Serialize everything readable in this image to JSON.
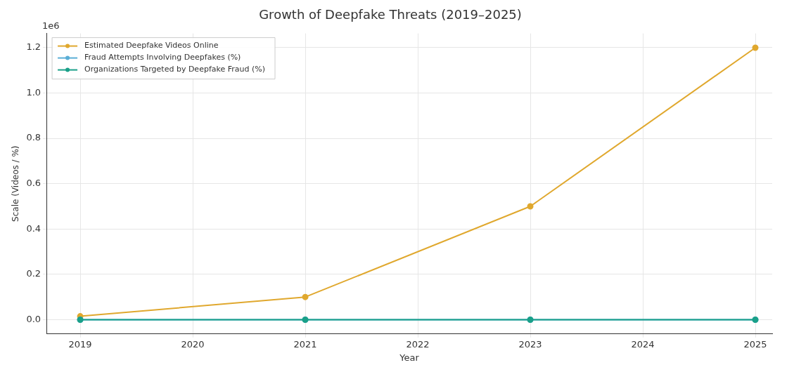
{
  "chart_data": {
    "type": "line",
    "title": "Growth of Deepfake Threats (2019–2025)",
    "xlabel": "Year",
    "ylabel": "Scale (Videos / %)",
    "x": [
      2019,
      2021,
      2023,
      2025
    ],
    "series": [
      {
        "name": "Estimated Deepfake Videos Online",
        "color": "#e0a82e",
        "values": [
          0.015,
          0.1,
          0.5,
          1.2
        ]
      },
      {
        "name": "Fraud Attempts Involving Deepfakes (%)",
        "color": "#5aaed6",
        "values": [
          0,
          0,
          0,
          0
        ]
      },
      {
        "name": "Organizations Targeted by Deepfake Fraud (%)",
        "color": "#1aa089",
        "values": [
          0,
          0,
          0,
          0
        ]
      }
    ],
    "xlim": [
      2018.7,
      2025.15
    ],
    "xticks": [
      2019,
      2020,
      2021,
      2022,
      2023,
      2024,
      2025
    ],
    "ylim": [
      -0.063,
      1.263
    ],
    "yticks": [
      {
        "value": 0,
        "label": "0.0"
      },
      0.2,
      0.4,
      0.6,
      0.8,
      {
        "value": 1,
        "label": "1.0"
      },
      1.2
    ],
    "annotations": [
      "1e6"
    ],
    "grid": true,
    "legend": "top left",
    "marker": "circle",
    "line_style": "solid"
  }
}
